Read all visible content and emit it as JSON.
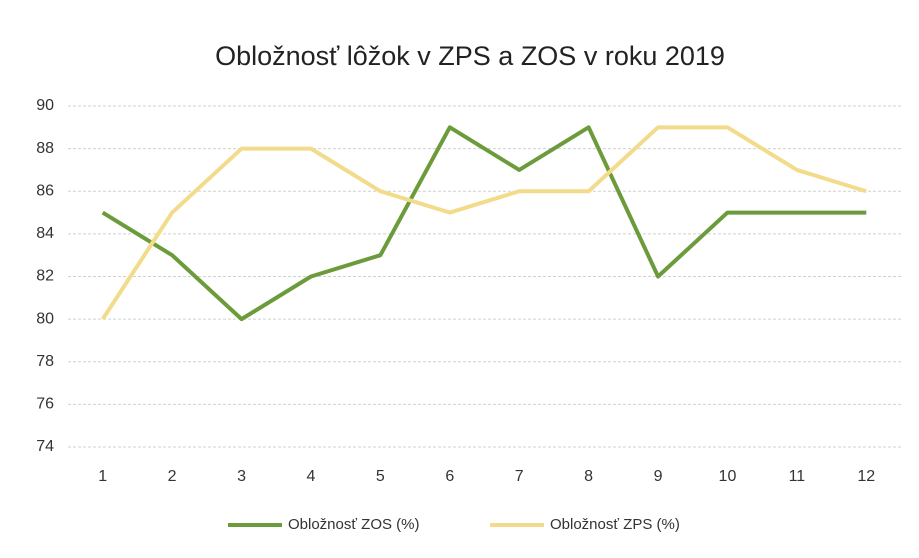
{
  "chart_data": {
    "type": "line",
    "title": "Obložnosť lôžok v ZPS a ZOS v roku 2019",
    "categories": [
      "1",
      "2",
      "3",
      "4",
      "5",
      "6",
      "7",
      "8",
      "9",
      "10",
      "11",
      "12"
    ],
    "series": [
      {
        "name": "Obložnosť ZOS (%)",
        "color": "#6b9b3a",
        "values": [
          85,
          83,
          80,
          82,
          83,
          89,
          87,
          89,
          82,
          85,
          85,
          85
        ]
      },
      {
        "name": "Obložnosť ZPS (%)",
        "color": "#f2dc8c",
        "values": [
          80,
          85,
          88,
          88,
          86,
          85,
          86,
          86,
          89,
          89,
          87,
          86
        ]
      }
    ],
    "ylim": [
      74,
      90
    ],
    "yticks": [
      74,
      76,
      78,
      80,
      82,
      84,
      86,
      88,
      90
    ],
    "grid": true,
    "legend": "bottom"
  }
}
